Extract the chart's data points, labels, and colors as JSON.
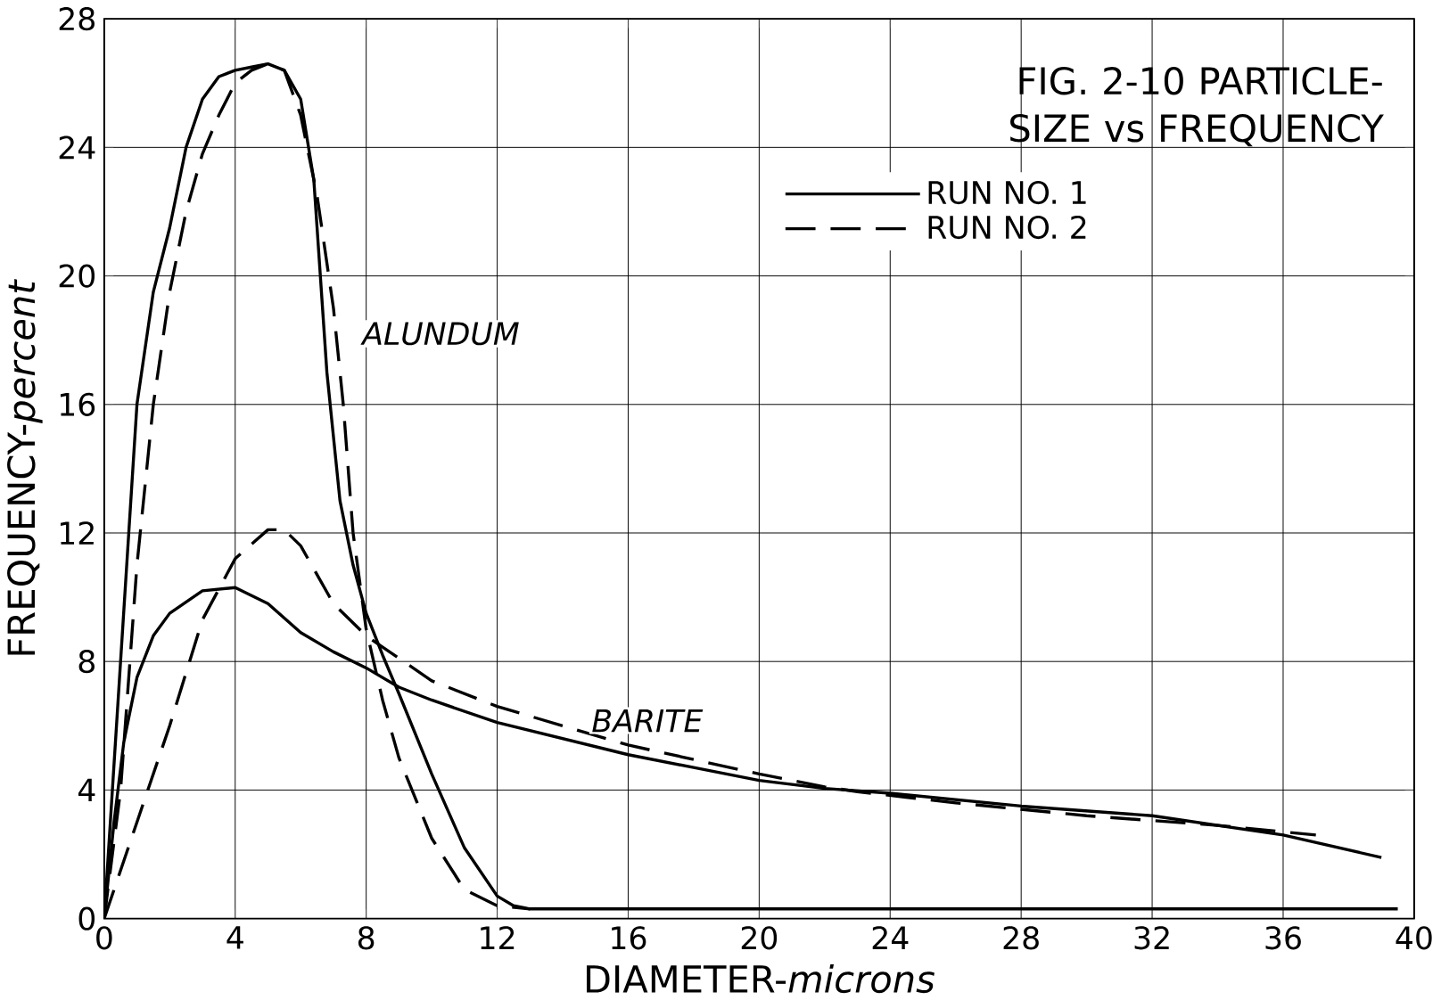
{
  "chart_data": {
    "type": "line",
    "title": "FIG. 2-10 PARTICLE-SIZE vs FREQUENCY",
    "xlabel": "DIAMETER-*microns*",
    "ylabel": "FREQUENCY-*percent*",
    "xlim": [
      0,
      40
    ],
    "ylim": [
      0,
      28
    ],
    "xticks": [
      0,
      4,
      8,
      12,
      16,
      20,
      24,
      28,
      32,
      36,
      40
    ],
    "yticks": [
      0,
      4,
      8,
      12,
      16,
      20,
      24,
      28
    ],
    "grid": true,
    "legend": "top right",
    "annotations": [
      "ALUNDUM",
      "BARITE"
    ],
    "series": [
      {
        "name": "RUN NO. 1",
        "color": "#000000",
        "line_style": "solid",
        "x": [
          0,
          0.5,
          1,
          1.5,
          2,
          2.5,
          3,
          3.5,
          4,
          4.5,
          5,
          5.5,
          6,
          6.4,
          6.8,
          7.2,
          7.6,
          8,
          8.5,
          9,
          10,
          11,
          12,
          12.5,
          13,
          16,
          24,
          39.5
        ],
        "values": [
          0,
          8,
          16,
          19.5,
          21.5,
          24,
          25.5,
          26.2,
          26.4,
          26.5,
          26.6,
          26.4,
          25.5,
          23,
          17,
          13,
          11,
          9.5,
          8.2,
          7,
          4.5,
          2.2,
          0.7,
          0.4,
          0.3,
          0.3,
          0.3,
          0.3
        ]
      },
      {
        "name": "RUN NO. 2",
        "color": "#000000",
        "line_style": "dashed",
        "x": [
          0,
          0.5,
          1,
          1.5,
          2,
          2.5,
          3,
          3.5,
          4,
          4.5,
          5,
          5.5,
          6,
          6.5,
          7,
          7.3,
          7.6,
          8,
          8.5,
          9,
          10,
          11,
          12,
          13
        ],
        "values": [
          0,
          4,
          11,
          16,
          19.5,
          22,
          23.8,
          25,
          26,
          26.4,
          26.6,
          26.4,
          25,
          22.5,
          19,
          16,
          12,
          9,
          6.8,
          5,
          2.5,
          0.9,
          0.4,
          0.3
        ]
      },
      {
        "color": "#000000",
        "line_style": "solid",
        "x": [
          0,
          0.3,
          0.6,
          1,
          1.5,
          2,
          3,
          4,
          5,
          6,
          7,
          8,
          9,
          10,
          12,
          14,
          16,
          18,
          20,
          22,
          24,
          28,
          32,
          36,
          39
        ],
        "values": [
          0,
          3,
          5.5,
          7.5,
          8.8,
          9.5,
          10.2,
          10.3,
          9.8,
          8.9,
          8.3,
          7.8,
          7.2,
          6.8,
          6.1,
          5.6,
          5.1,
          4.7,
          4.3,
          4.05,
          3.9,
          3.5,
          3.2,
          2.6,
          1.9
        ]
      },
      {
        "color": "#000000",
        "line_style": "dashed",
        "x": [
          0,
          1,
          2,
          3,
          4,
          5,
          5.5,
          6,
          7,
          8,
          9,
          10,
          12,
          14,
          16,
          20,
          22,
          23,
          26,
          30,
          34,
          37
        ],
        "values": [
          0,
          3,
          6,
          9.3,
          11.2,
          12.1,
          12.1,
          11.6,
          9.8,
          8.8,
          8.1,
          7.4,
          6.6,
          6,
          5.4,
          4.5,
          4.1,
          3.95,
          3.6,
          3.2,
          2.9,
          2.6
        ]
      }
    ]
  }
}
